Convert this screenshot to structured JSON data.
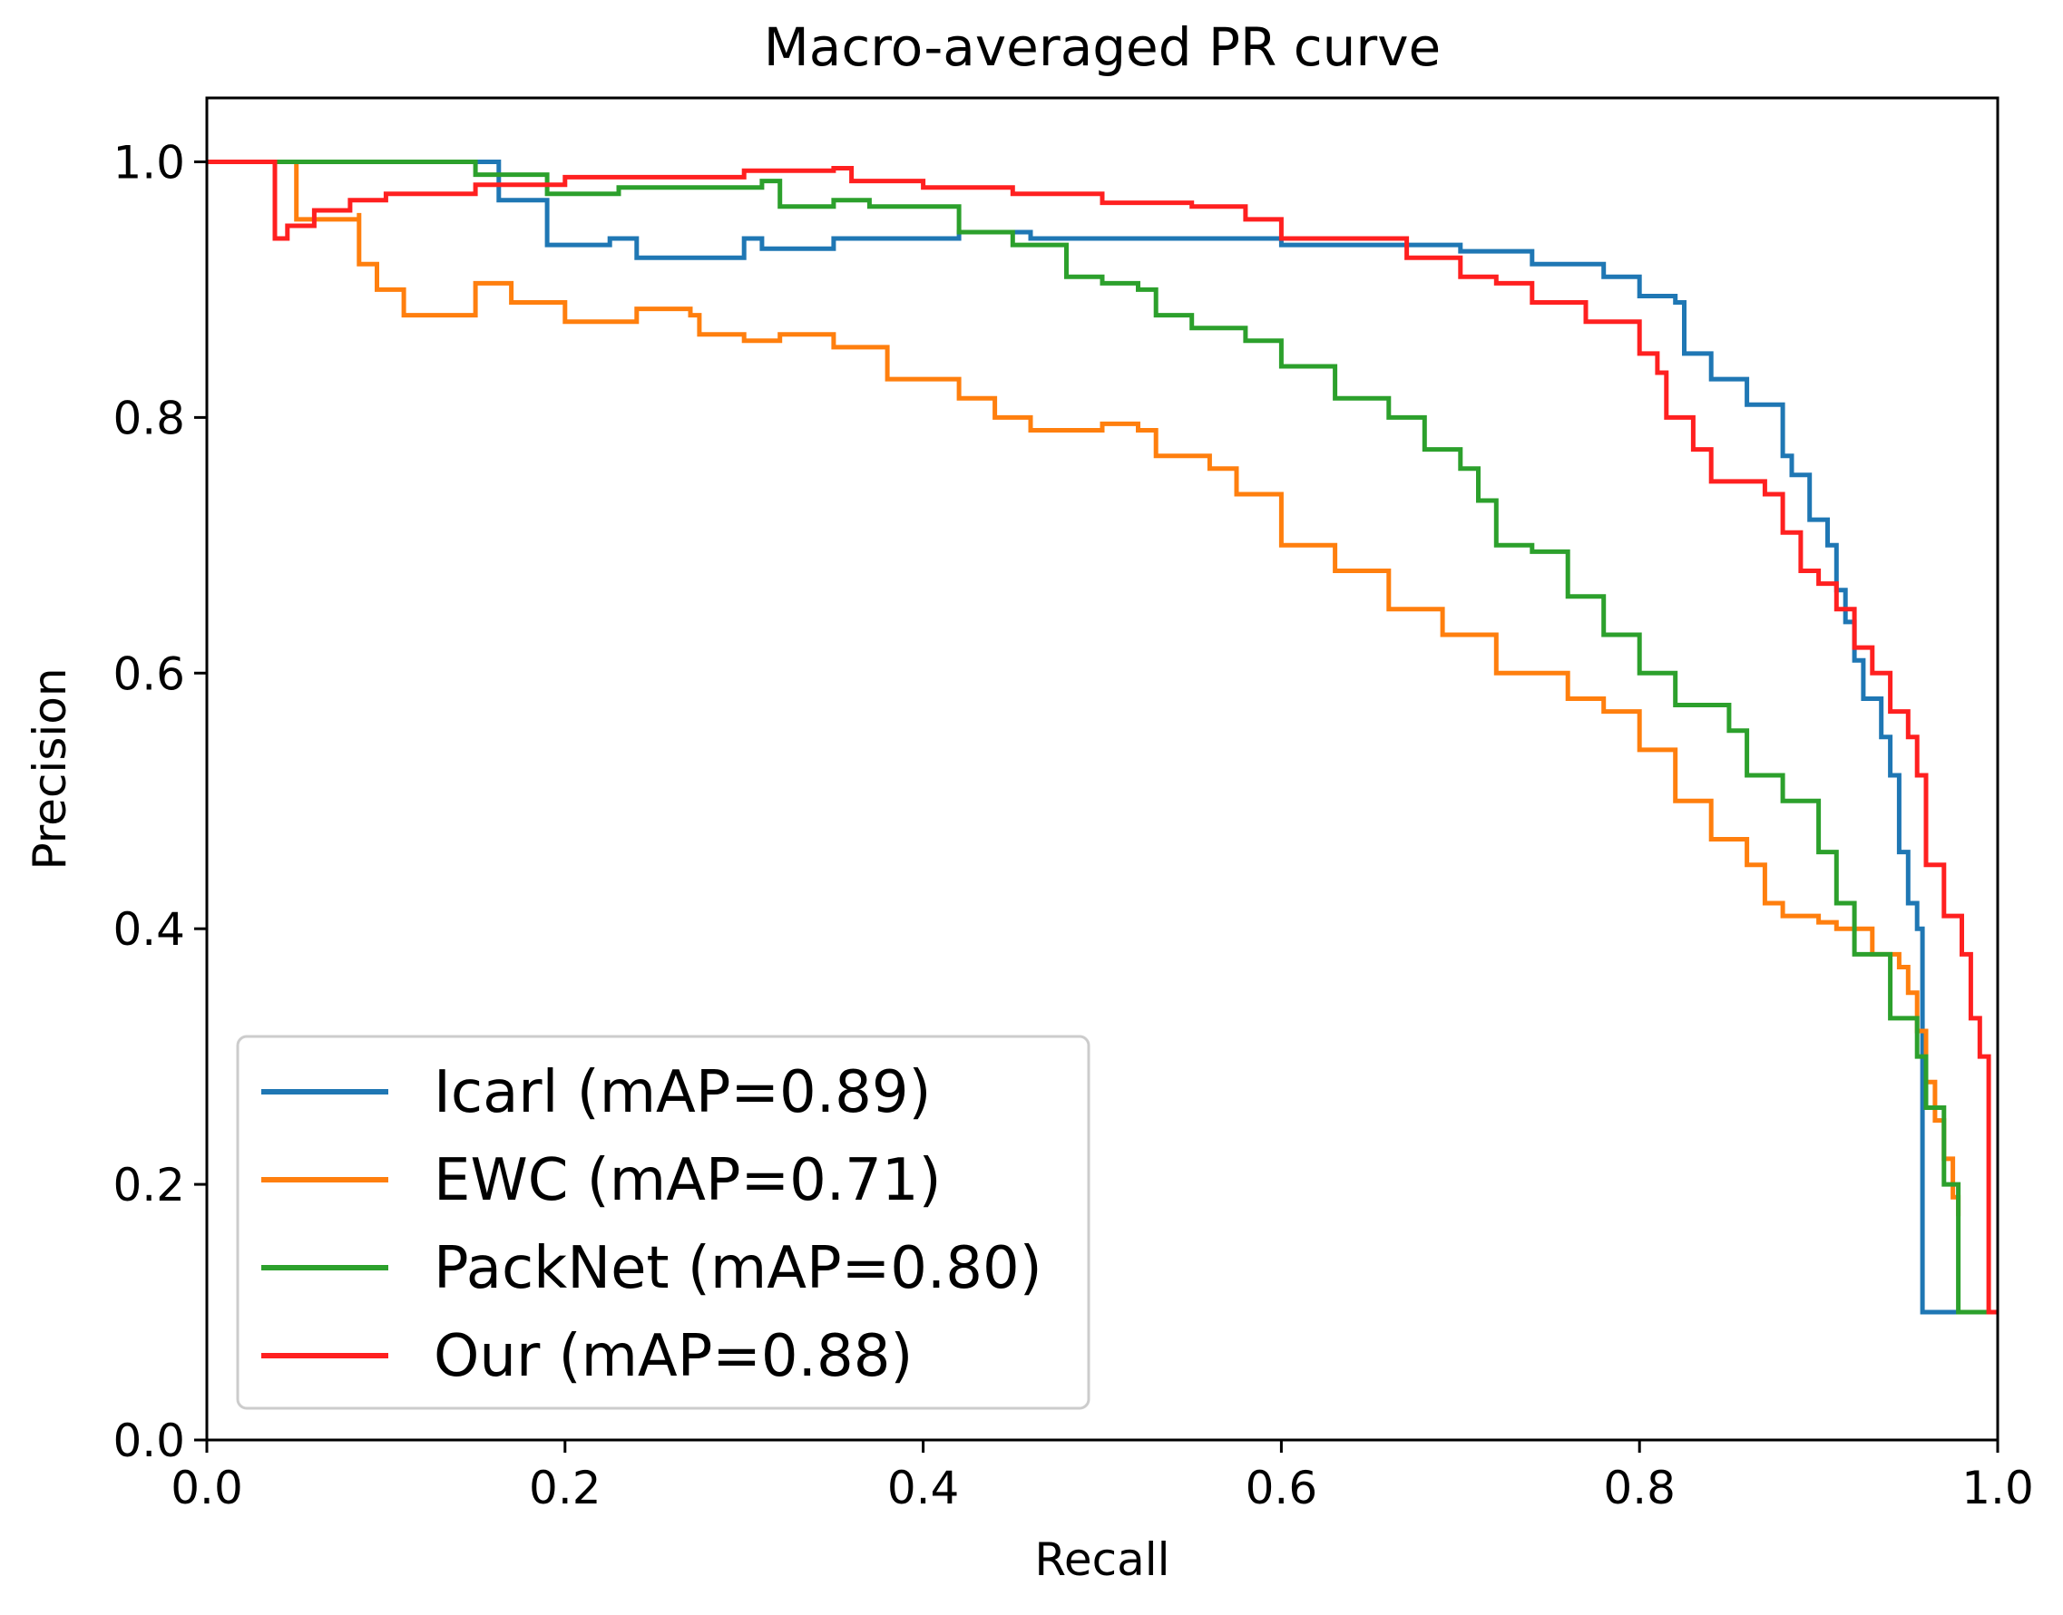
{
  "chart_data": {
    "type": "line",
    "title": "Macro-averaged PR curve",
    "xlabel": "Recall",
    "ylabel": "Precision",
    "xlim": [
      0.0,
      1.0
    ],
    "ylim": [
      0.0,
      1.05
    ],
    "grid": false,
    "legend_position": "lower-left",
    "x_ticks": [
      {
        "value": 0.0,
        "label": "0.0"
      },
      {
        "value": 0.2,
        "label": "0.2"
      },
      {
        "value": 0.4,
        "label": "0.4"
      },
      {
        "value": 0.6,
        "label": "0.6"
      },
      {
        "value": 0.8,
        "label": "0.8"
      },
      {
        "value": 1.0,
        "label": "1.0"
      }
    ],
    "y_ticks": [
      {
        "value": 0.0,
        "label": "0.0"
      },
      {
        "value": 0.2,
        "label": "0.2"
      },
      {
        "value": 0.4,
        "label": "0.4"
      },
      {
        "value": 0.6,
        "label": "0.6"
      },
      {
        "value": 0.8,
        "label": "0.8"
      },
      {
        "value": 1.0,
        "label": "1.0"
      }
    ],
    "series": [
      {
        "name": "Icarl (mAP=0.89)",
        "color": "#1f77b4",
        "points": [
          [
            0.0,
            1.0
          ],
          [
            0.163,
            1.0
          ],
          [
            0.163,
            0.97
          ],
          [
            0.183,
            0.97
          ],
          [
            0.19,
            0.935
          ],
          [
            0.225,
            0.94
          ],
          [
            0.24,
            0.925
          ],
          [
            0.3,
            0.94
          ],
          [
            0.31,
            0.932
          ],
          [
            0.35,
            0.94
          ],
          [
            0.42,
            0.945
          ],
          [
            0.46,
            0.94
          ],
          [
            0.52,
            0.94
          ],
          [
            0.6,
            0.935
          ],
          [
            0.64,
            0.935
          ],
          [
            0.7,
            0.93
          ],
          [
            0.72,
            0.93
          ],
          [
            0.74,
            0.92
          ],
          [
            0.78,
            0.91
          ],
          [
            0.8,
            0.895
          ],
          [
            0.82,
            0.89
          ],
          [
            0.825,
            0.85
          ],
          [
            0.84,
            0.83
          ],
          [
            0.86,
            0.81
          ],
          [
            0.88,
            0.77
          ],
          [
            0.885,
            0.755
          ],
          [
            0.895,
            0.72
          ],
          [
            0.905,
            0.7
          ],
          [
            0.91,
            0.665
          ],
          [
            0.915,
            0.64
          ],
          [
            0.92,
            0.61
          ],
          [
            0.925,
            0.58
          ],
          [
            0.935,
            0.55
          ],
          [
            0.94,
            0.52
          ],
          [
            0.945,
            0.46
          ],
          [
            0.95,
            0.42
          ],
          [
            0.955,
            0.4
          ],
          [
            0.958,
            0.3
          ],
          [
            0.958,
            0.1
          ],
          [
            0.98,
            0.1
          ]
        ]
      },
      {
        "name": "EWC (mAP=0.71)",
        "color": "#ff7f0e",
        "points": [
          [
            0.0,
            1.0
          ],
          [
            0.05,
            1.0
          ],
          [
            0.05,
            0.955
          ],
          [
            0.085,
            0.96
          ],
          [
            0.085,
            0.92
          ],
          [
            0.095,
            0.9
          ],
          [
            0.11,
            0.88
          ],
          [
            0.15,
            0.905
          ],
          [
            0.17,
            0.89
          ],
          [
            0.18,
            0.89
          ],
          [
            0.2,
            0.875
          ],
          [
            0.24,
            0.885
          ],
          [
            0.27,
            0.88
          ],
          [
            0.275,
            0.865
          ],
          [
            0.3,
            0.86
          ],
          [
            0.32,
            0.865
          ],
          [
            0.35,
            0.855
          ],
          [
            0.38,
            0.83
          ],
          [
            0.4,
            0.83
          ],
          [
            0.42,
            0.815
          ],
          [
            0.44,
            0.8
          ],
          [
            0.46,
            0.79
          ],
          [
            0.5,
            0.795
          ],
          [
            0.52,
            0.79
          ],
          [
            0.53,
            0.77
          ],
          [
            0.56,
            0.76
          ],
          [
            0.575,
            0.74
          ],
          [
            0.6,
            0.7
          ],
          [
            0.63,
            0.68
          ],
          [
            0.66,
            0.65
          ],
          [
            0.69,
            0.63
          ],
          [
            0.72,
            0.6
          ],
          [
            0.76,
            0.58
          ],
          [
            0.78,
            0.57
          ],
          [
            0.8,
            0.54
          ],
          [
            0.82,
            0.5
          ],
          [
            0.84,
            0.47
          ],
          [
            0.86,
            0.45
          ],
          [
            0.87,
            0.42
          ],
          [
            0.88,
            0.41
          ],
          [
            0.9,
            0.405
          ],
          [
            0.91,
            0.4
          ],
          [
            0.93,
            0.38
          ],
          [
            0.945,
            0.37
          ],
          [
            0.95,
            0.35
          ],
          [
            0.955,
            0.32
          ],
          [
            0.96,
            0.28
          ],
          [
            0.965,
            0.25
          ],
          [
            0.97,
            0.22
          ],
          [
            0.975,
            0.19
          ],
          [
            0.978,
            0.175
          ]
        ]
      },
      {
        "name": "PackNet (mAP=0.80)",
        "color": "#2ca02c",
        "points": [
          [
            0.0,
            1.0
          ],
          [
            0.15,
            1.0
          ],
          [
            0.15,
            0.99
          ],
          [
            0.19,
            0.99
          ],
          [
            0.19,
            0.975
          ],
          [
            0.23,
            0.98
          ],
          [
            0.31,
            0.985
          ],
          [
            0.32,
            0.965
          ],
          [
            0.35,
            0.97
          ],
          [
            0.37,
            0.965
          ],
          [
            0.42,
            0.945
          ],
          [
            0.45,
            0.935
          ],
          [
            0.48,
            0.91
          ],
          [
            0.5,
            0.905
          ],
          [
            0.52,
            0.9
          ],
          [
            0.53,
            0.88
          ],
          [
            0.55,
            0.87
          ],
          [
            0.58,
            0.86
          ],
          [
            0.6,
            0.84
          ],
          [
            0.63,
            0.815
          ],
          [
            0.66,
            0.8
          ],
          [
            0.68,
            0.775
          ],
          [
            0.7,
            0.76
          ],
          [
            0.71,
            0.735
          ],
          [
            0.72,
            0.7
          ],
          [
            0.74,
            0.695
          ],
          [
            0.76,
            0.66
          ],
          [
            0.78,
            0.63
          ],
          [
            0.8,
            0.6
          ],
          [
            0.82,
            0.575
          ],
          [
            0.85,
            0.555
          ],
          [
            0.86,
            0.52
          ],
          [
            0.88,
            0.5
          ],
          [
            0.9,
            0.46
          ],
          [
            0.91,
            0.42
          ],
          [
            0.92,
            0.38
          ],
          [
            0.94,
            0.33
          ],
          [
            0.955,
            0.3
          ],
          [
            0.96,
            0.26
          ],
          [
            0.97,
            0.2
          ],
          [
            0.978,
            0.175
          ],
          [
            0.978,
            0.1
          ],
          [
            1.0,
            0.1
          ]
        ]
      },
      {
        "name": "Our (mAP=0.88)",
        "color": "#ff2020",
        "points": [
          [
            0.0,
            1.0
          ],
          [
            0.038,
            1.0
          ],
          [
            0.038,
            0.94
          ],
          [
            0.045,
            0.95
          ],
          [
            0.06,
            0.962
          ],
          [
            0.08,
            0.97
          ],
          [
            0.1,
            0.975
          ],
          [
            0.15,
            0.982
          ],
          [
            0.2,
            0.988
          ],
          [
            0.3,
            0.993
          ],
          [
            0.35,
            0.995
          ],
          [
            0.36,
            0.985
          ],
          [
            0.4,
            0.98
          ],
          [
            0.45,
            0.975
          ],
          [
            0.5,
            0.968
          ],
          [
            0.55,
            0.965
          ],
          [
            0.58,
            0.955
          ],
          [
            0.6,
            0.94
          ],
          [
            0.65,
            0.94
          ],
          [
            0.67,
            0.925
          ],
          [
            0.7,
            0.91
          ],
          [
            0.72,
            0.905
          ],
          [
            0.74,
            0.89
          ],
          [
            0.77,
            0.875
          ],
          [
            0.8,
            0.85
          ],
          [
            0.81,
            0.835
          ],
          [
            0.815,
            0.8
          ],
          [
            0.83,
            0.775
          ],
          [
            0.84,
            0.75
          ],
          [
            0.87,
            0.74
          ],
          [
            0.88,
            0.71
          ],
          [
            0.89,
            0.68
          ],
          [
            0.9,
            0.67
          ],
          [
            0.91,
            0.65
          ],
          [
            0.92,
            0.62
          ],
          [
            0.93,
            0.6
          ],
          [
            0.94,
            0.57
          ],
          [
            0.95,
            0.55
          ],
          [
            0.955,
            0.52
          ],
          [
            0.96,
            0.45
          ],
          [
            0.97,
            0.41
          ],
          [
            0.98,
            0.38
          ],
          [
            0.985,
            0.33
          ],
          [
            0.99,
            0.3
          ],
          [
            0.995,
            0.26
          ],
          [
            0.995,
            0.1
          ],
          [
            1.0,
            0.1
          ]
        ]
      }
    ]
  }
}
